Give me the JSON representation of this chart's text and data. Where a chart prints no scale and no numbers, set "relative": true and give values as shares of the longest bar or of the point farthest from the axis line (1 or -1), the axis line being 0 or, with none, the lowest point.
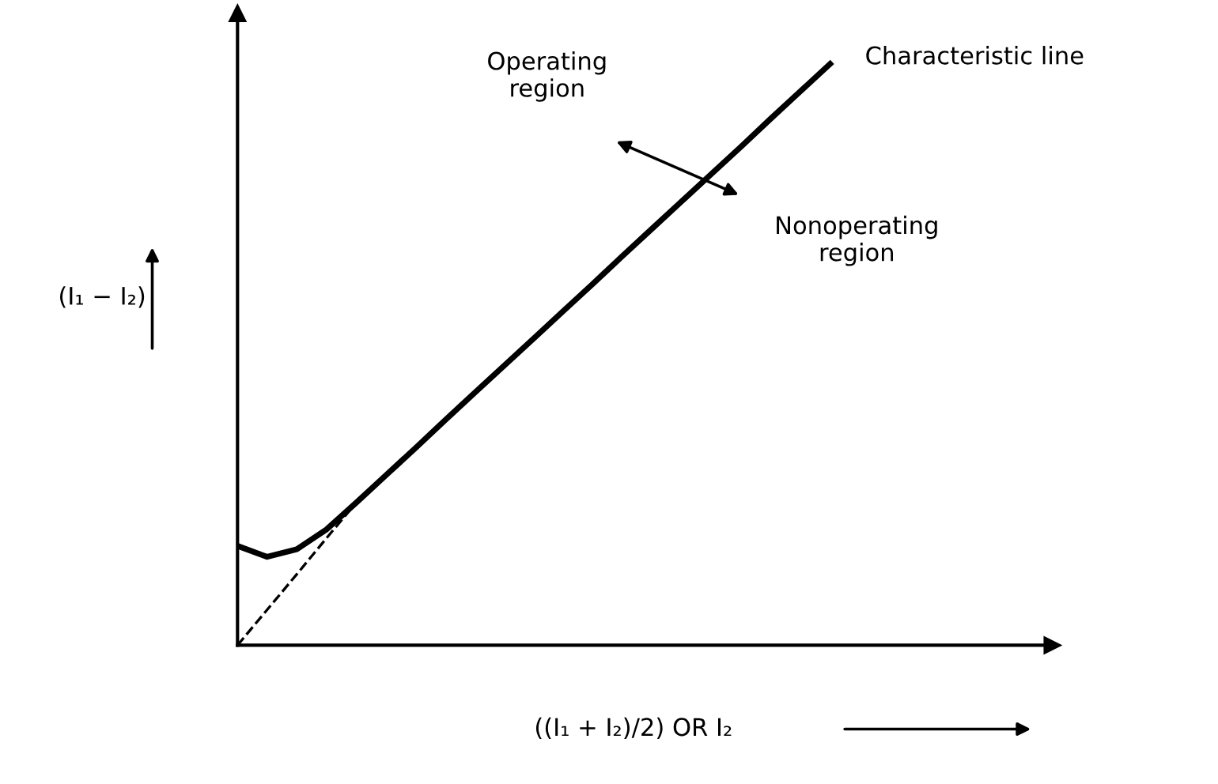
{
  "chart_data": {
    "type": "line",
    "relative": true,
    "xlabel": "((I₁ + I₂)/2) OR I₂",
    "ylabel": "(I₁ − I₂)",
    "categories": [
      null,
      null,
      null,
      null,
      null,
      null,
      null,
      null,
      null,
      null,
      null,
      null,
      null,
      null,
      null,
      null,
      null,
      null,
      null,
      null,
      null,
      null,
      null,
      null,
      null,
      null,
      null,
      null
    ],
    "series": [
      {
        "color": "#000000",
        "values": [
          0.171,
          0.152,
          0.165,
          0.199,
          0.245,
          0.292,
          0.339,
          0.387,
          0.434,
          0.481,
          0.528,
          0.575,
          0.622,
          0.67,
          0.717,
          0.764,
          0.811,
          0.858,
          0.906,
          0.953,
          1,
          null,
          null,
          null,
          null,
          null,
          null,
          null
        ]
      },
      {
        "color": "#000000",
        "line_style": "dashed",
        "values": [
          0,
          0.061,
          0.122,
          0.184,
          0.245,
          null,
          null,
          null,
          null,
          null,
          null,
          null,
          null,
          null,
          null,
          null,
          null,
          null,
          null,
          null,
          null,
          null,
          null,
          null,
          null,
          null,
          null,
          null
        ]
      }
    ],
    "annotations": [
      "Characteristic line",
      "Operating\nregion",
      "Nonoperating\nregion"
    ]
  }
}
